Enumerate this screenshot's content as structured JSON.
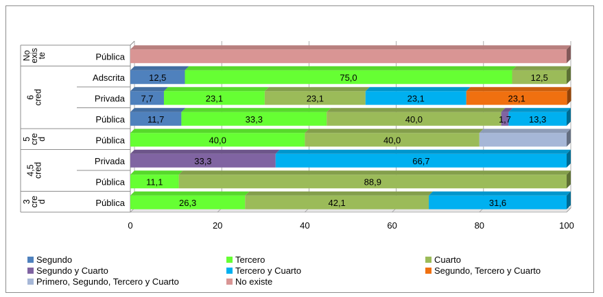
{
  "chart_data": {
    "type": "bar",
    "orientation": "horizontal",
    "stacked": true,
    "xlim": [
      0,
      100
    ],
    "x_ticks": [
      "0",
      "20",
      "40",
      "60",
      "80",
      "100"
    ],
    "grid": true,
    "legend_position": "bottom",
    "series": [
      {
        "name": "Segundo",
        "color": "#4f81bd"
      },
      {
        "name": "Tercero",
        "color": "#66ff33"
      },
      {
        "name": "Cuarto",
        "color": "#9bbb59"
      },
      {
        "name": "Segundo y Cuarto",
        "color": "#8064a2"
      },
      {
        "name": "Tercero y Cuarto",
        "color": "#00b0f0"
      },
      {
        "name": "Segundo, Tercero y Cuarto",
        "color": "#f07010"
      },
      {
        "name": "Primero, Segundo, Tercero y Cuarto",
        "color": "#a6b7d7"
      },
      {
        "name": "No existe",
        "color": "#d99594"
      }
    ],
    "groups": [
      {
        "label": "No existe",
        "rows": [
          {
            "label": "Pública",
            "segments": [
              {
                "series": 7,
                "value": 100,
                "label": ""
              }
            ]
          }
        ]
      },
      {
        "label": "6 cred",
        "rows": [
          {
            "label": "Adscrita",
            "segments": [
              {
                "series": 0,
                "value": 12.5,
                "label": "12,5"
              },
              {
                "series": 1,
                "value": 75.0,
                "label": "75,0"
              },
              {
                "series": 2,
                "value": 12.5,
                "label": "12,5"
              }
            ]
          },
          {
            "label": "Privada",
            "segments": [
              {
                "series": 0,
                "value": 7.7,
                "label": "7,7"
              },
              {
                "series": 1,
                "value": 23.1,
                "label": "23,1"
              },
              {
                "series": 2,
                "value": 23.1,
                "label": "23,1"
              },
              {
                "series": 4,
                "value": 23.1,
                "label": "23,1"
              },
              {
                "series": 5,
                "value": 23.1,
                "label": "23,1"
              }
            ]
          },
          {
            "label": "Pública",
            "segments": [
              {
                "series": 0,
                "value": 11.7,
                "label": "11,7"
              },
              {
                "series": 1,
                "value": 33.3,
                "label": "33,3"
              },
              {
                "series": 2,
                "value": 40.0,
                "label": "40,0"
              },
              {
                "series": 3,
                "value": 1.7,
                "label": "1,7"
              },
              {
                "series": 4,
                "value": 13.3,
                "label": "13,3"
              }
            ]
          }
        ]
      },
      {
        "label": "5 cred",
        "rows": [
          {
            "label": "Pública",
            "segments": [
              {
                "series": 1,
                "value": 40.0,
                "label": "40,0"
              },
              {
                "series": 2,
                "value": 40.0,
                "label": "40,0"
              },
              {
                "series": 6,
                "value": 20.0,
                "label": ""
              }
            ]
          }
        ]
      },
      {
        "label": "4,5 cred",
        "rows": [
          {
            "label": "Privada",
            "segments": [
              {
                "series": 3,
                "value": 33.3,
                "label": "33,3"
              },
              {
                "series": 4,
                "value": 66.7,
                "label": "66,7"
              }
            ]
          },
          {
            "label": "Pública",
            "segments": [
              {
                "series": 1,
                "value": 11.1,
                "label": "11,1"
              },
              {
                "series": 2,
                "value": 88.9,
                "label": "88,9"
              }
            ]
          }
        ]
      },
      {
        "label": "3 cred",
        "rows": [
          {
            "label": "Pública",
            "segments": [
              {
                "series": 1,
                "value": 26.3,
                "label": "26,3"
              },
              {
                "series": 2,
                "value": 42.1,
                "label": "42,1"
              },
              {
                "series": 4,
                "value": 31.6,
                "label": "31,6"
              }
            ]
          }
        ]
      }
    ]
  }
}
